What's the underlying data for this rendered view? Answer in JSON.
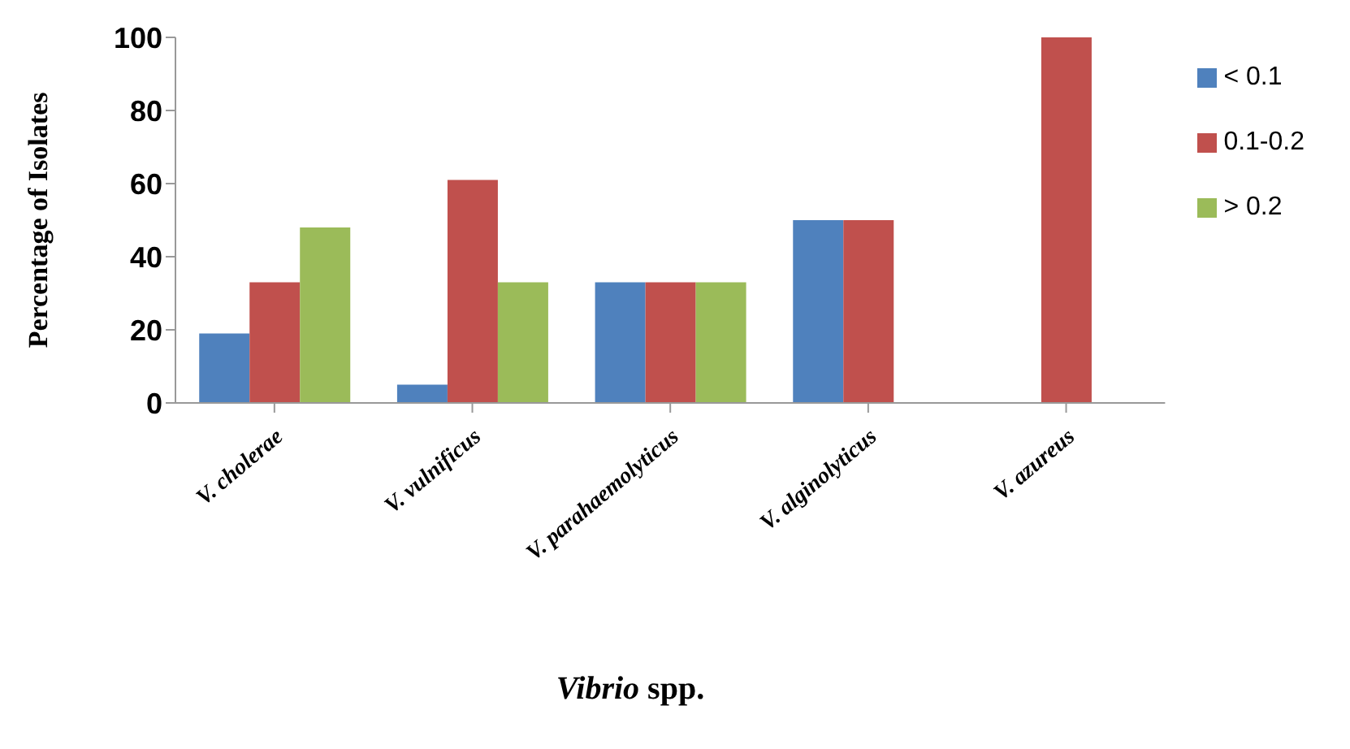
{
  "chart_data": {
    "type": "bar",
    "categories": [
      "V. cholerae",
      "V. vulnificus",
      "V. parahaemolyticus",
      "V. alginolyticus",
      "V. azureus"
    ],
    "series": [
      {
        "name": "< 0.1",
        "color": "#4f81bd",
        "values": [
          19,
          5,
          33,
          50,
          0
        ]
      },
      {
        "name": "0.1-0.2",
        "color": "#c0504d",
        "values": [
          33,
          61,
          33,
          50,
          100
        ]
      },
      {
        "name": "> 0.2",
        "color": "#9bbb59",
        "values": [
          48,
          33,
          33,
          0,
          0
        ]
      }
    ],
    "xlabel": "Vibrio spp.",
    "ylabel": "Percentage of Isolates",
    "ylim": [
      0,
      100
    ],
    "yticks": [
      0,
      20,
      40,
      60,
      80,
      100
    ],
    "grid": false,
    "legend": "right"
  }
}
